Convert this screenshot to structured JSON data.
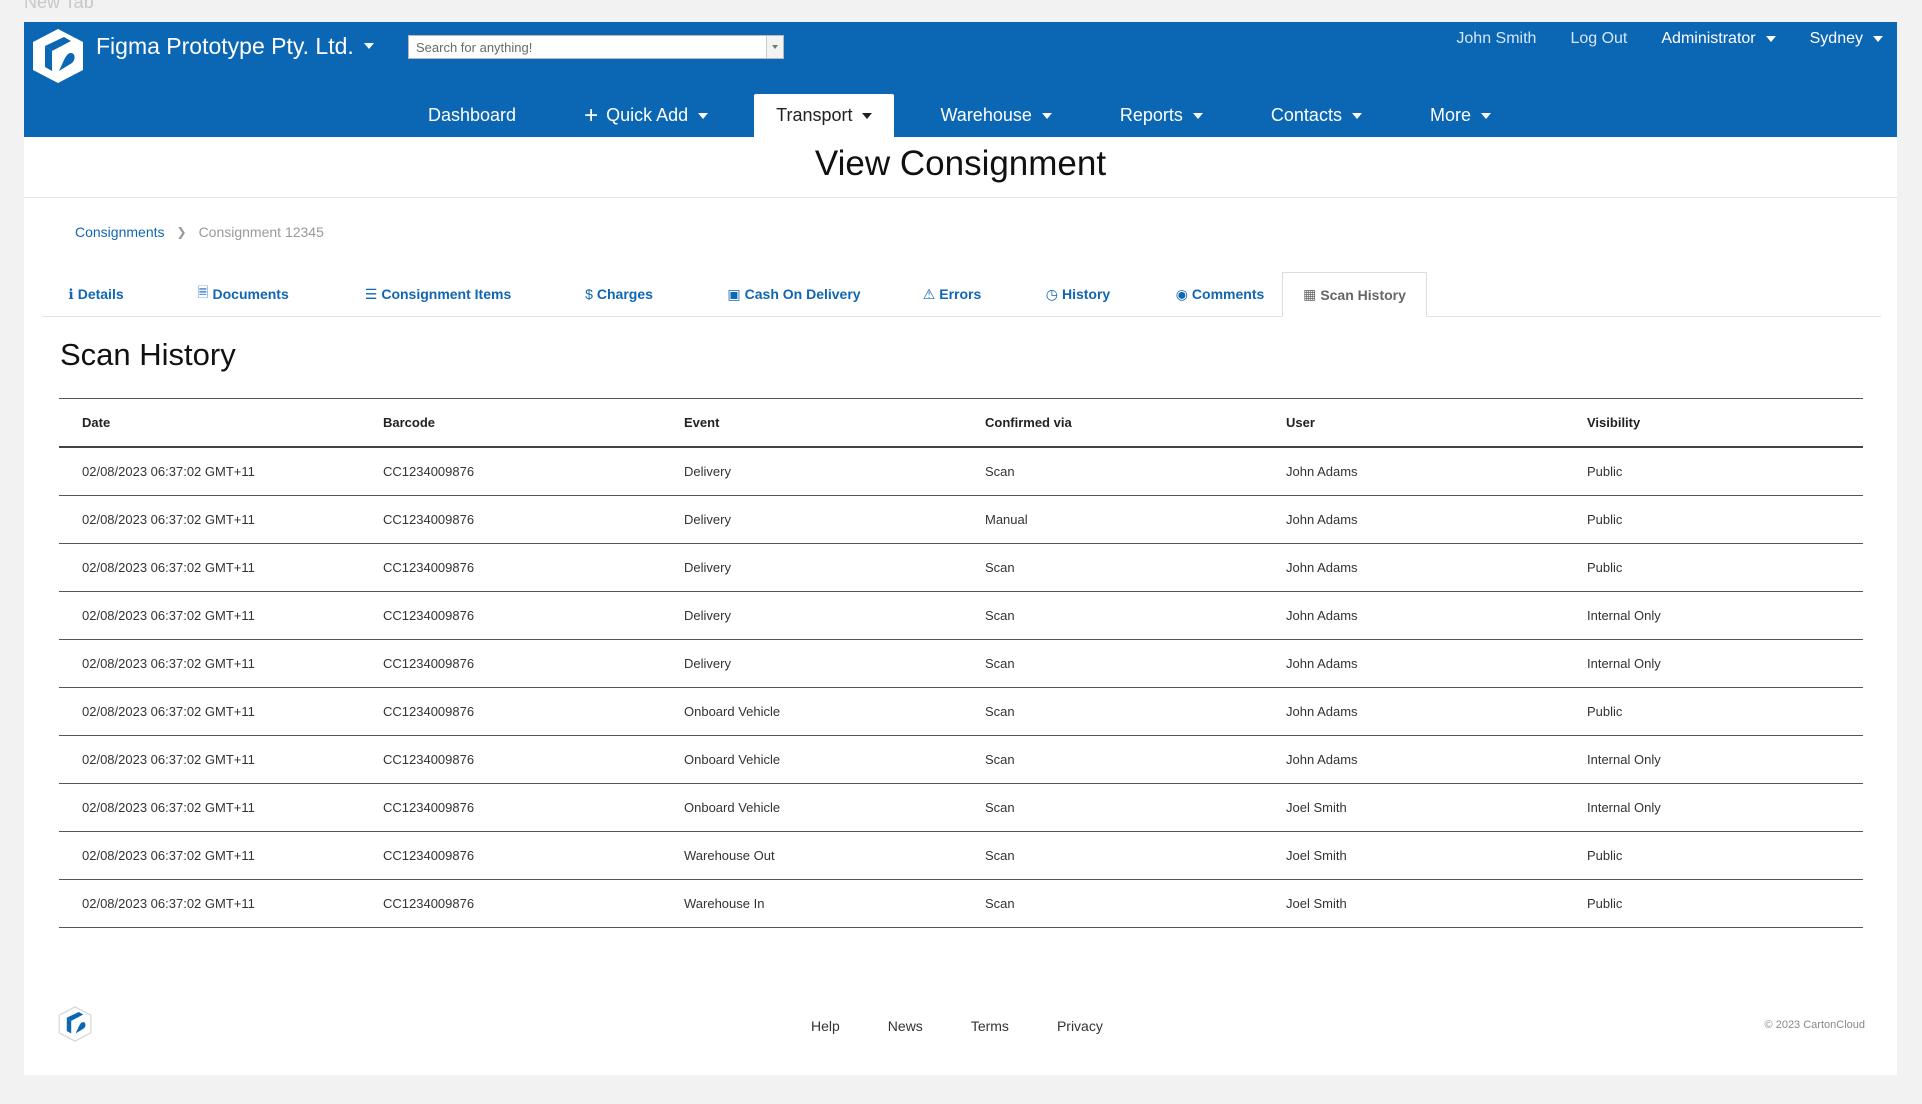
{
  "browser": {
    "tab_title": "New Tab"
  },
  "header": {
    "company": "Figma Prototype Pty. Ltd.",
    "search_placeholder": "Search for anything!",
    "user_name": "John Smith",
    "logout": "Log Out",
    "role": "Administrator",
    "location": "Sydney"
  },
  "nav": {
    "dashboard": "Dashboard",
    "quick_add": "Quick Add",
    "transport": "Transport",
    "warehouse": "Warehouse",
    "reports": "Reports",
    "contacts": "Contacts",
    "more": "More"
  },
  "page": {
    "title": "View Consignment",
    "section_title": "Scan History"
  },
  "breadcrumb": {
    "parent": "Consignments",
    "current": "Consignment 12345"
  },
  "tabs": {
    "details": "Details",
    "documents": "Documents",
    "items": "Consignment Items",
    "charges": "Charges",
    "cod": "Cash On Delivery",
    "errors": "Errors",
    "history": "History",
    "comments": "Comments",
    "scan_history": "Scan History"
  },
  "table": {
    "columns": [
      "Date",
      "Barcode",
      "Event",
      "Confirmed via",
      "User",
      "Visibility"
    ],
    "rows": [
      [
        "02/08/2023 06:37:02 GMT+11",
        "CC1234009876",
        "Delivery",
        "Scan",
        "John Adams",
        "Public"
      ],
      [
        "02/08/2023 06:37:02 GMT+11",
        "CC1234009876",
        "Delivery",
        "Manual",
        "John Adams",
        "Public"
      ],
      [
        "02/08/2023 06:37:02 GMT+11",
        "CC1234009876",
        "Delivery",
        "Scan",
        "John Adams",
        "Public"
      ],
      [
        "02/08/2023 06:37:02 GMT+11",
        "CC1234009876",
        "Delivery",
        "Scan",
        "John Adams",
        "Internal Only"
      ],
      [
        "02/08/2023 06:37:02 GMT+11",
        "CC1234009876",
        "Delivery",
        "Scan",
        "John Adams",
        "Internal Only"
      ],
      [
        "02/08/2023 06:37:02 GMT+11",
        "CC1234009876",
        "Onboard Vehicle",
        "Scan",
        "John Adams",
        "Public"
      ],
      [
        "02/08/2023 06:37:02 GMT+11",
        "CC1234009876",
        "Onboard Vehicle",
        "Scan",
        "John Adams",
        "Internal Only"
      ],
      [
        "02/08/2023 06:37:02 GMT+11",
        "CC1234009876",
        "Onboard Vehicle",
        "Scan",
        "Joel Smith",
        "Internal Only"
      ],
      [
        "02/08/2023 06:37:02 GMT+11",
        "CC1234009876",
        "Warehouse Out",
        "Scan",
        "Joel Smith",
        "Public"
      ],
      [
        "02/08/2023 06:37:02 GMT+11",
        "CC1234009876",
        "Warehouse In",
        "Scan",
        "Joel Smith",
        "Public"
      ]
    ]
  },
  "footer": {
    "help": "Help",
    "news": "News",
    "terms": "Terms",
    "privacy": "Privacy",
    "copyright": "© 2023 CartonCloud"
  },
  "colors": {
    "brand_blue": "#0b66b4",
    "link_blue": "#1166b3"
  }
}
